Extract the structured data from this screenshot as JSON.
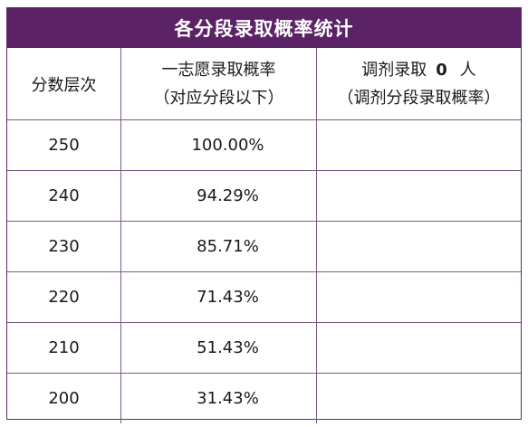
{
  "table": {
    "title": "各分段录取概率统计",
    "headers": {
      "col1": "分数层次",
      "col2_line1": "一志愿录取概率",
      "col2_line2": "（对应分段以下）",
      "col3_prefix": "调剂录取",
      "col3_count": "0",
      "col3_suffix": "人",
      "col3_line2": "（调剂分段录取概率）"
    },
    "rows": [
      {
        "score": "250",
        "first_choice": "100.00%",
        "adjusted": ""
      },
      {
        "score": "240",
        "first_choice": "94.29%",
        "adjusted": ""
      },
      {
        "score": "230",
        "first_choice": "85.71%",
        "adjusted": ""
      },
      {
        "score": "220",
        "first_choice": "71.43%",
        "adjusted": ""
      },
      {
        "score": "210",
        "first_choice": "51.43%",
        "adjusted": ""
      },
      {
        "score": "200",
        "first_choice": "31.43%",
        "adjusted": ""
      }
    ],
    "colors": {
      "title_bg": "#5c2266",
      "border": "#7a5a86"
    }
  }
}
